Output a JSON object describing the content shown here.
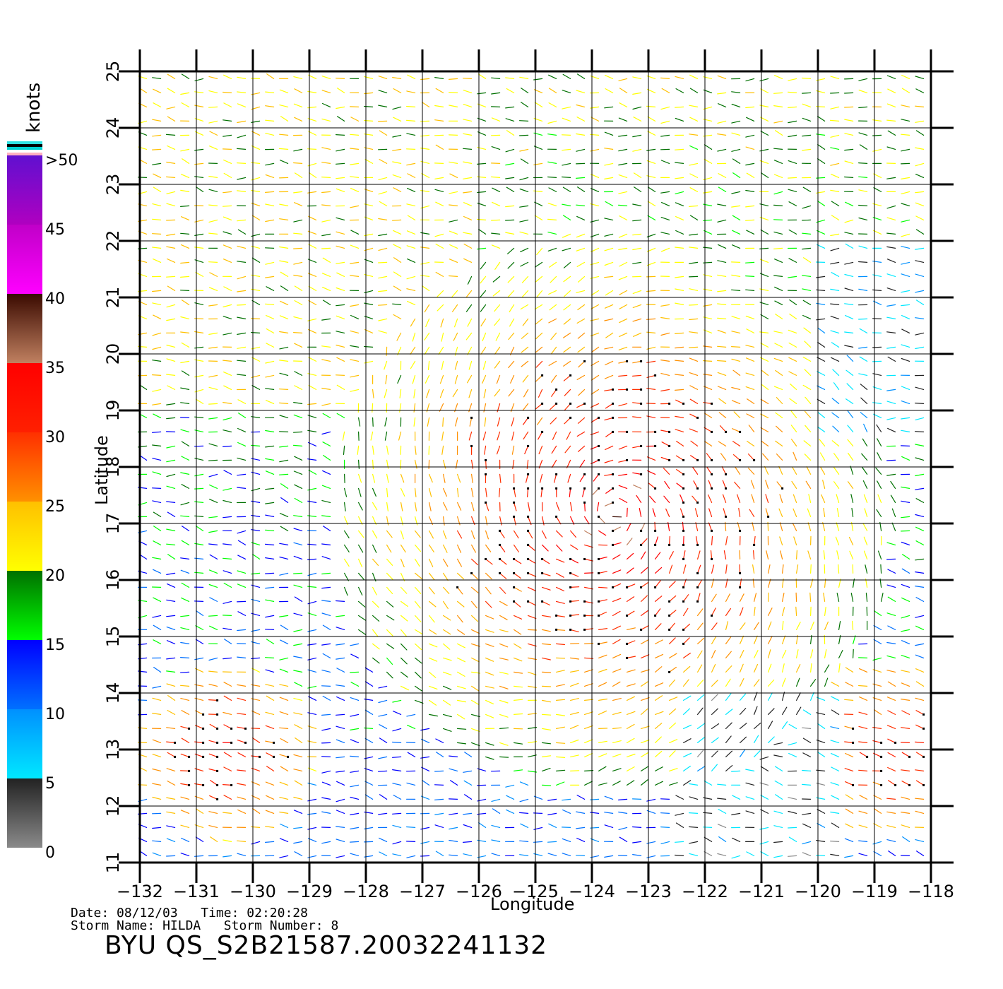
{
  "colorbar": {
    "units": "knots",
    "labels": [
      ">50",
      "45",
      "40",
      "35",
      "30",
      "25",
      "20",
      "15",
      "10",
      "5",
      "0"
    ],
    "stops": [
      {
        "from": 0,
        "to": 5,
        "colors": [
          "#8a8a8a",
          "#222222"
        ]
      },
      {
        "from": 5,
        "to": 10,
        "colors": [
          "#00e8ff",
          "#0090ff"
        ]
      },
      {
        "from": 10,
        "to": 15,
        "colors": [
          "#0070ff",
          "#0000ff"
        ]
      },
      {
        "from": 15,
        "to": 20,
        "colors": [
          "#00ff00",
          "#007000"
        ]
      },
      {
        "from": 20,
        "to": 25,
        "colors": [
          "#ffff00",
          "#ffc000"
        ]
      },
      {
        "from": 25,
        "to": 30,
        "colors": [
          "#ff9000",
          "#ff3000"
        ]
      },
      {
        "from": 30,
        "to": 35,
        "colors": [
          "#ff2000",
          "#ff0000"
        ]
      },
      {
        "from": 35,
        "to": 40,
        "colors": [
          "#c08060",
          "#3a0a00"
        ]
      },
      {
        "from": 40,
        "to": 45,
        "colors": [
          "#ff00ff",
          "#c000c8"
        ]
      },
      {
        "from": 45,
        "to": 50,
        "colors": [
          "#b000c0",
          "#6010d0"
        ]
      }
    ]
  },
  "map": {
    "xlabel": "Longitude",
    "ylabel": "Latitude",
    "lon_range": [
      -132,
      -118
    ],
    "lat_range": [
      11,
      25
    ],
    "lon_ticks": [
      "−132",
      "−131",
      "−130",
      "−129",
      "−128",
      "−127",
      "−126",
      "−125",
      "−124",
      "−123",
      "−122",
      "−121",
      "−120",
      "−119",
      "−118"
    ],
    "lat_ticks": [
      "11",
      "12",
      "13",
      "14",
      "15",
      "16",
      "17",
      "18",
      "19",
      "20",
      "21",
      "22",
      "23",
      "24",
      "25"
    ],
    "grid": true,
    "storm_center": {
      "lon": -123.6,
      "lat": 17.2
    },
    "secondary_features": [
      {
        "lon": -130.4,
        "lat": 12.9
      },
      {
        "lon": -118.7,
        "lat": 13.0
      }
    ]
  },
  "footer": {
    "date_label": "Date:",
    "date": "08/12/03",
    "time_label": "Time:",
    "time": "02:20:28",
    "storm_name_label": "Storm Name:",
    "storm_name": "HILDA",
    "storm_number_label": "Storm Number:",
    "storm_number": "8",
    "product": "BYU QS_S2B21587.20032241132"
  }
}
